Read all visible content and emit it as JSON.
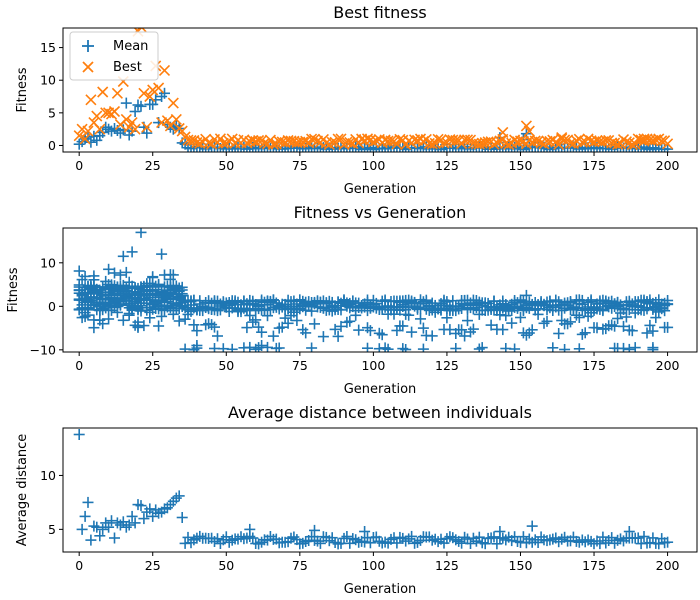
{
  "figure": {
    "colors": {
      "mean": "#1f77b4",
      "best": "#ff7f0e",
      "axis": "#000000",
      "legend_border": "#cccccc"
    },
    "marker_icons": {
      "mean": "plus-marker",
      "best": "x-marker"
    }
  },
  "chart_data": [
    {
      "type": "scatter",
      "title": "Best fitness",
      "xlabel": "Generation",
      "ylabel": "Fitness",
      "xlim": [
        -5.5,
        210
      ],
      "ylim": [
        -1,
        18
      ],
      "xticks": [
        0,
        25,
        50,
        75,
        100,
        125,
        150,
        175,
        200
      ],
      "yticks": [
        0,
        5,
        10,
        15
      ],
      "grid": false,
      "legend": {
        "placement": "upper-left",
        "entries": [
          "Mean",
          "Best"
        ]
      },
      "series": [
        {
          "name": "Mean",
          "marker": "+",
          "color": "#1f77b4",
          "x": [
            0,
            1,
            2,
            3,
            4,
            5,
            6,
            7,
            8,
            9,
            10,
            11,
            12,
            13,
            14,
            15,
            16,
            17,
            18,
            19,
            20,
            21,
            22,
            23,
            24,
            25,
            26,
            27,
            28,
            29,
            30,
            31,
            32,
            33,
            34,
            35,
            36
          ],
          "y": [
            0.2,
            0.6,
            1.0,
            1.3,
            0.5,
            1.4,
            0.8,
            1.5,
            2.0,
            2.8,
            2.5,
            2.2,
            2.6,
            2.3,
            1.9,
            2.4,
            6.5,
            1.6,
            2.2,
            5.2,
            6.2,
            6.0,
            2.8,
            1.9,
            6.3,
            6.3,
            7.0,
            3.5,
            7.5,
            8.0,
            3.2,
            2.8,
            2.5,
            3.0,
            2.6,
            0.4,
            0.2
          ],
          "tail_start": 37,
          "tail_end": 200,
          "tail_value": -0.4,
          "tail_spikes": [
            [
              143,
              1.2
            ],
            [
              152,
              1.8
            ],
            [
              151,
              0.9
            ]
          ]
        },
        {
          "name": "Best",
          "marker": "x",
          "color": "#ff7f0e",
          "x": [
            0,
            1,
            2,
            3,
            4,
            5,
            6,
            7,
            8,
            9,
            10,
            11,
            12,
            13,
            14,
            15,
            16,
            17,
            18,
            19,
            20,
            21,
            22,
            23,
            24,
            25,
            26,
            27,
            28,
            29,
            30,
            31,
            32,
            33,
            34,
            35,
            36
          ],
          "y": [
            1.5,
            2.5,
            1.0,
            2.2,
            7.0,
            3.5,
            4.5,
            2.5,
            8.2,
            5.0,
            5.0,
            4.8,
            5.2,
            8.0,
            3.2,
            9.8,
            4.0,
            2.8,
            3.5,
            2.5,
            17.5,
            18.2,
            8.0,
            2.8,
            7.5,
            8.5,
            12.2,
            8.8,
            3.5,
            11.5,
            3.8,
            3.0,
            6.5,
            4.0,
            2.6,
            2.2,
            1.3
          ],
          "tail_start": 37,
          "tail_end": 200,
          "tail_value": 0.4,
          "tail_spikes": [
            [
              144,
              2.0
            ],
            [
              152,
              3.0
            ],
            [
              153,
              2.2
            ],
            [
              164,
              1.2
            ],
            [
              192,
              1.0
            ]
          ]
        }
      ]
    },
    {
      "type": "scatter",
      "title": "Fitness vs Generation",
      "xlabel": "Generation",
      "ylabel": "Fitness",
      "xlim": [
        -5.5,
        210
      ],
      "ylim": [
        -10.5,
        18
      ],
      "xticks": [
        0,
        25,
        50,
        75,
        100,
        125,
        150,
        175,
        200
      ],
      "yticks": [
        -10,
        0,
        10
      ],
      "grid": false,
      "series": [
        {
          "marker": "+",
          "color": "#1f77b4",
          "early_range": [
            0,
            35
          ],
          "early_spread": [
            -5,
            17
          ],
          "late_range": [
            36,
            200
          ],
          "late_band": [
            -1,
            1.5
          ],
          "late_low": -10,
          "highlight_points": [
            [
              21,
              17.0
            ],
            [
              18,
              12.5
            ],
            [
              15,
              11.5
            ],
            [
              28,
              12.0
            ],
            [
              5,
              7.0
            ],
            [
              10,
              8.5
            ],
            [
              20,
              -4.5
            ],
            [
              8,
              -4.0
            ],
            [
              40,
              -9.0
            ],
            [
              62,
              -9.0
            ],
            [
              152,
              2.5
            ],
            [
              195,
              -9.5
            ]
          ]
        }
      ]
    },
    {
      "type": "scatter",
      "title": "Average distance between individuals",
      "xlabel": "Generation",
      "ylabel": "Average distance",
      "xlim": [
        -5.5,
        210
      ],
      "ylim": [
        2.9,
        14.4
      ],
      "xticks": [
        0,
        25,
        50,
        75,
        100,
        125,
        150,
        175,
        200
      ],
      "yticks": [
        5,
        10
      ],
      "grid": false,
      "series": [
        {
          "marker": "+",
          "color": "#1f77b4",
          "x": [
            0,
            1,
            2,
            3,
            4,
            5,
            6,
            7,
            8,
            9,
            10,
            11,
            12,
            13,
            14,
            15,
            16,
            17,
            18,
            19,
            20,
            21,
            22,
            23,
            24,
            25,
            26,
            27,
            28,
            29,
            30,
            31,
            32,
            33,
            34,
            35,
            36
          ],
          "y": [
            13.8,
            5.0,
            6.2,
            7.5,
            4.0,
            5.3,
            5.2,
            4.4,
            5.0,
            5.6,
            5.2,
            5.8,
            4.2,
            5.6,
            5.4,
            5.7,
            5.2,
            5.4,
            6.2,
            5.6,
            7.3,
            7.2,
            6.0,
            6.6,
            6.9,
            6.2,
            6.8,
            6.5,
            6.6,
            6.9,
            7.0,
            7.3,
            7.6,
            7.9,
            8.1,
            6.1,
            3.7
          ],
          "tail_start": 37,
          "tail_end": 200,
          "tail_center": 4.0,
          "tail_spikes": [
            [
              58,
              5.0
            ],
            [
              80,
              4.9
            ],
            [
              97,
              4.8
            ],
            [
              143,
              4.8
            ],
            [
              154,
              5.3
            ],
            [
              187,
              4.8
            ]
          ]
        }
      ]
    }
  ]
}
